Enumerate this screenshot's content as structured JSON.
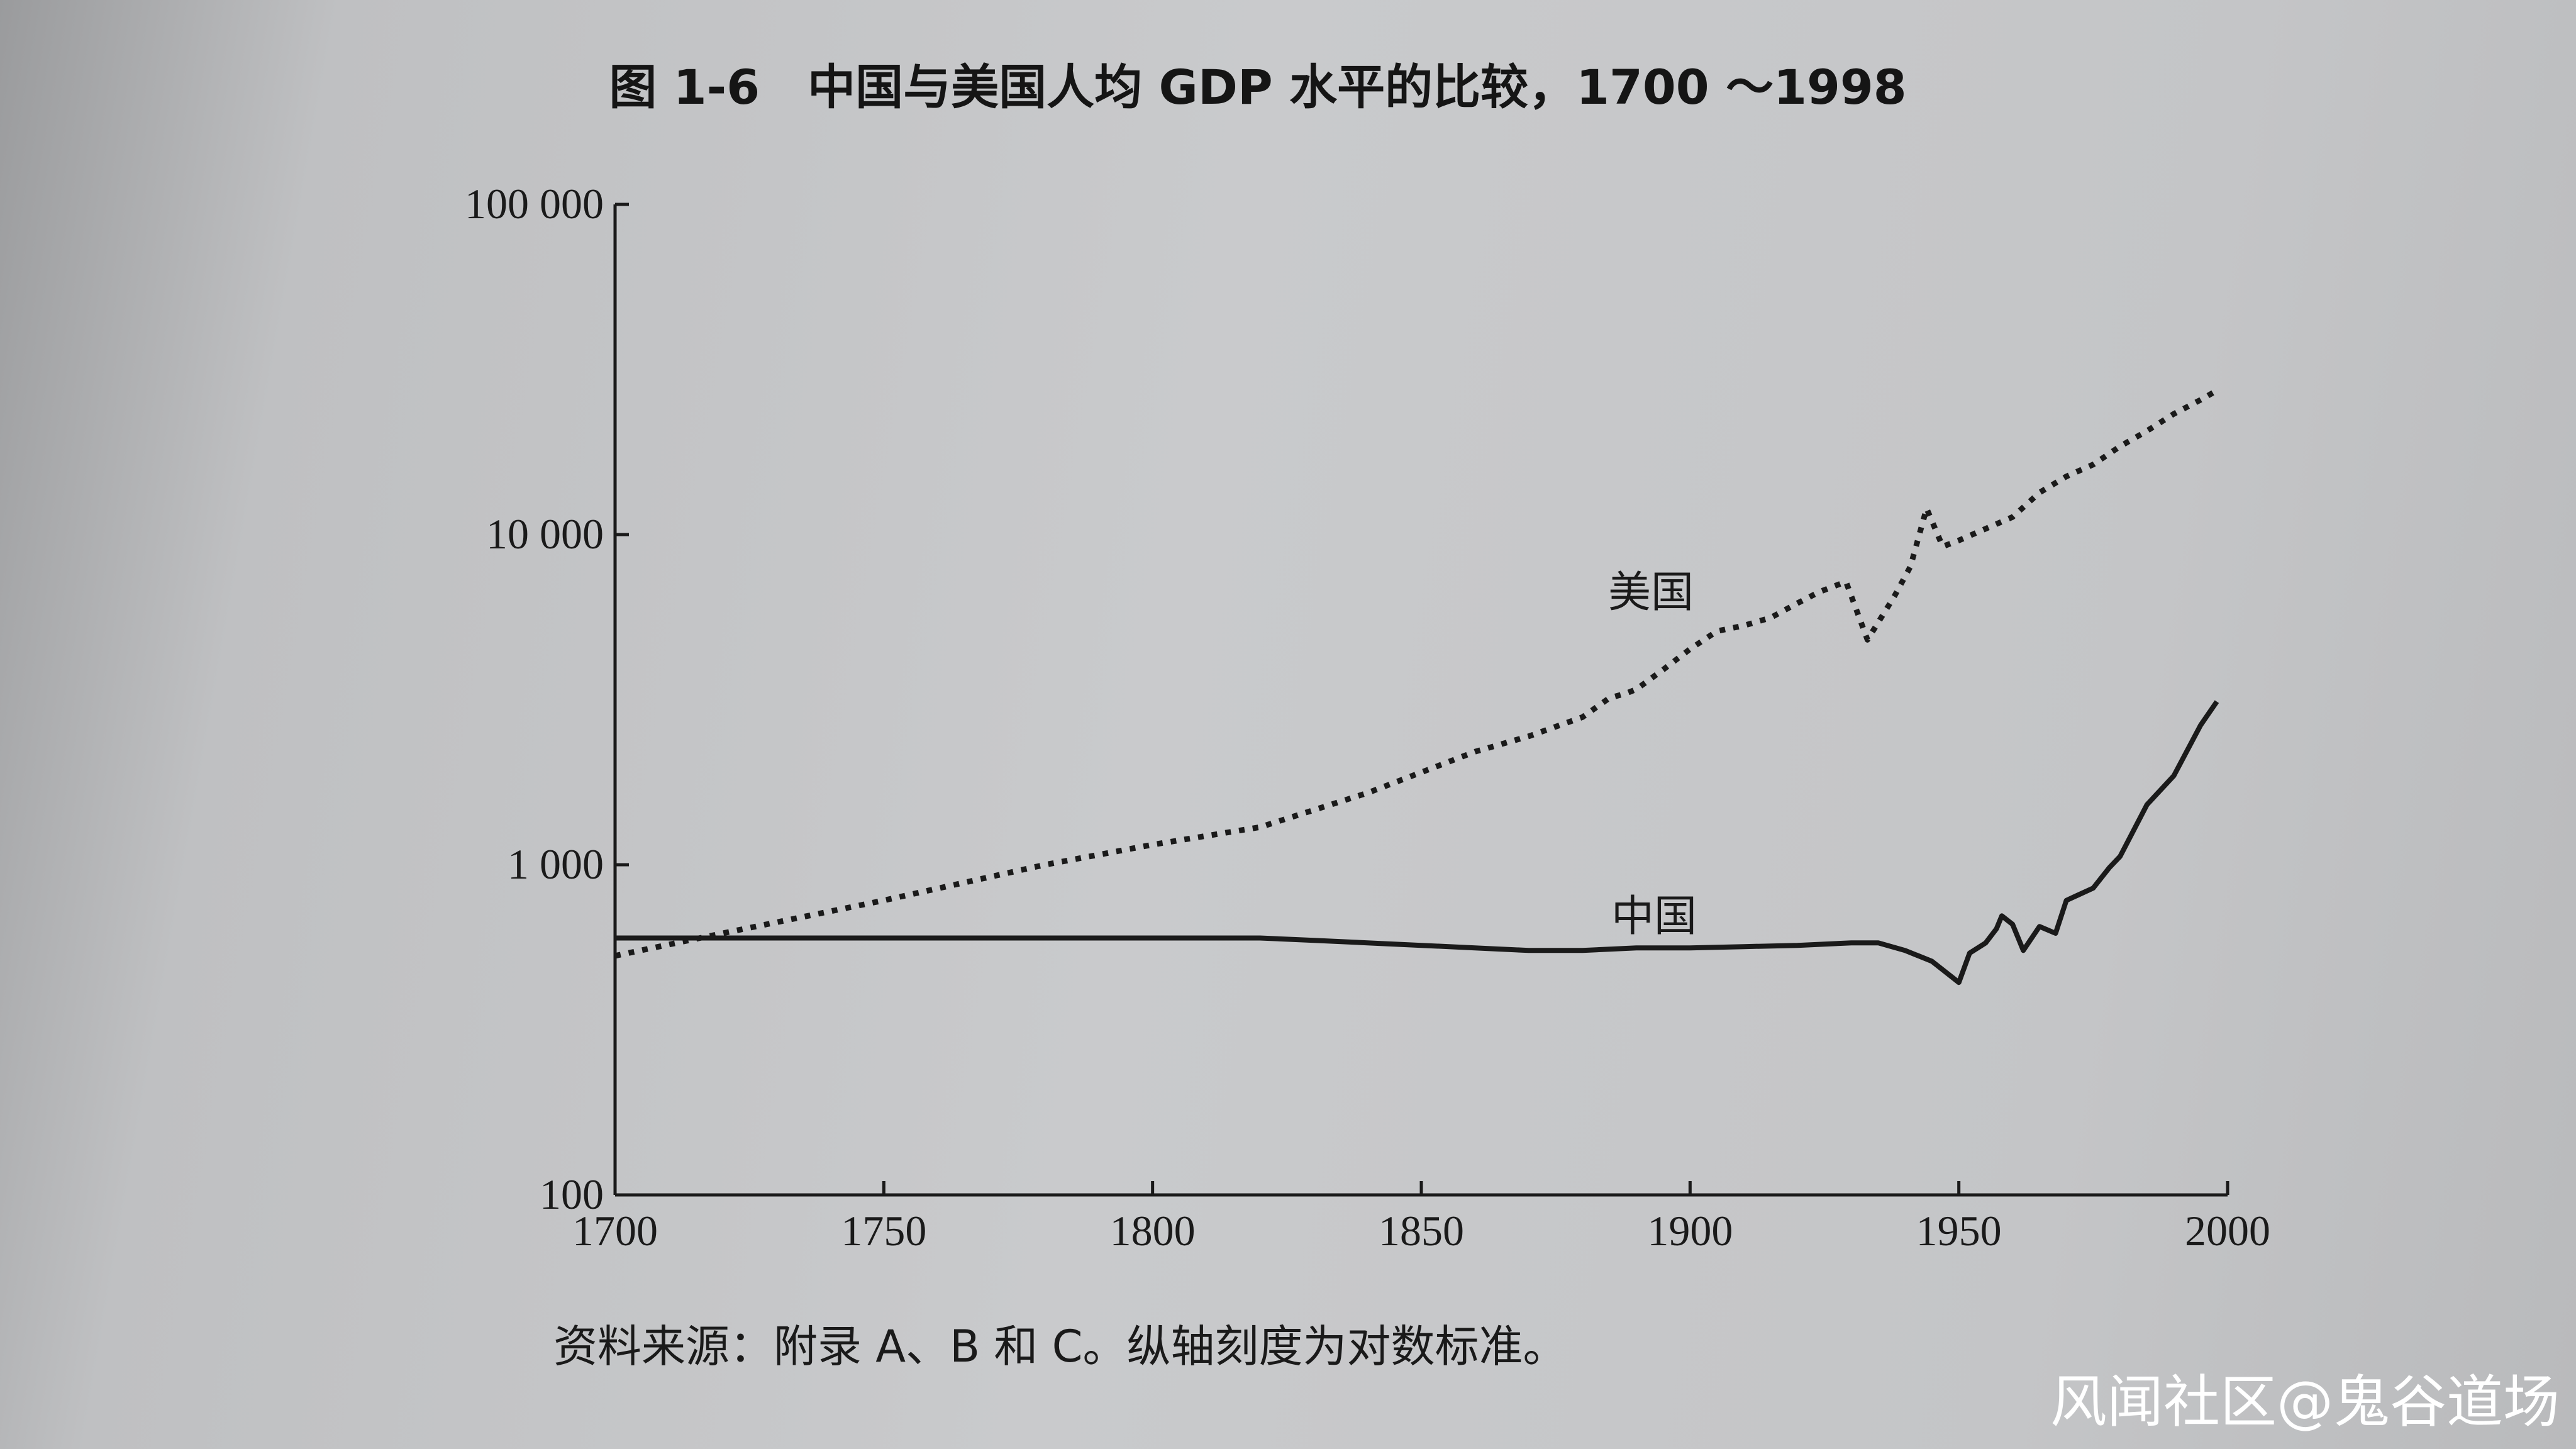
{
  "chart_data": {
    "type": "line",
    "title": "图 1-6　中国与美国人均 GDP 水平的比较，1700 ～1998",
    "xlabel": "",
    "ylabel": "",
    "x_ticks": [
      1700,
      1750,
      1800,
      1850,
      1900,
      1950,
      2000
    ],
    "x_tick_labels": [
      "1700",
      "1750",
      "1800",
      "1850",
      "1900",
      "1950",
      "2000"
    ],
    "y_ticks": [
      100,
      1000,
      10000,
      100000
    ],
    "y_tick_labels": [
      "100",
      "1 000",
      "10 000",
      "100 000"
    ],
    "xlim": [
      1700,
      2000
    ],
    "ylim": [
      100,
      100000
    ],
    "y_scale": "log",
    "grid": false,
    "series": [
      {
        "name": "美国",
        "style": "dotted",
        "color": "#1a1a1a",
        "x": [
          1700,
          1720,
          1750,
          1780,
          1800,
          1820,
          1840,
          1860,
          1870,
          1880,
          1885,
          1888,
          1890,
          1895,
          1900,
          1905,
          1910,
          1915,
          1920,
          1924,
          1929,
          1933,
          1938,
          1941,
          1944,
          1947,
          1950,
          1960,
          1965,
          1970,
          1975,
          1980,
          1985,
          1990,
          1995,
          1998
        ],
        "values": [
          530,
          620,
          780,
          1000,
          1150,
          1300,
          1650,
          2200,
          2450,
          2800,
          3200,
          3300,
          3400,
          3900,
          4500,
          5100,
          5300,
          5600,
          6200,
          6700,
          7200,
          4800,
          6500,
          8000,
          12000,
          9200,
          9600,
          11300,
          13400,
          15000,
          16300,
          18500,
          20600,
          23200,
          25600,
          27300
        ]
      },
      {
        "name": "中国",
        "style": "solid",
        "color": "#1a1a1a",
        "x": [
          1700,
          1750,
          1800,
          1820,
          1830,
          1840,
          1850,
          1860,
          1870,
          1880,
          1890,
          1900,
          1910,
          1920,
          1930,
          1935,
          1940,
          1945,
          1950,
          1952,
          1955,
          1957,
          1958,
          1960,
          1962,
          1965,
          1968,
          1970,
          1975,
          1978,
          1980,
          1985,
          1990,
          1995,
          1998
        ],
        "values": [
          600,
          600,
          600,
          600,
          590,
          580,
          570,
          560,
          550,
          550,
          560,
          560,
          565,
          570,
          580,
          580,
          550,
          510,
          440,
          540,
          580,
          640,
          700,
          660,
          550,
          650,
          620,
          780,
          850,
          980,
          1060,
          1520,
          1860,
          2650,
          3120
        ]
      }
    ],
    "series_labels": [
      {
        "series": "美国",
        "text": "美国"
      },
      {
        "series": "中国",
        "text": "中国"
      }
    ],
    "source_note": "资料来源：附录 A、B 和 C。纵轴刻度为对数标准。"
  },
  "watermark": "风闻社区@鬼谷道场"
}
